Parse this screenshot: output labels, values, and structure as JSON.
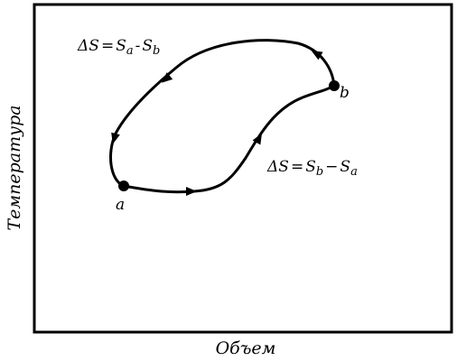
{
  "axes": {
    "y_label": "Температура",
    "x_label": "Объем"
  },
  "points": {
    "a": "a",
    "b": "b"
  },
  "upper_label": [
    "ΔS",
    "=",
    "S",
    "a",
    "-",
    "S",
    "b"
  ],
  "lower_label": [
    "ΔS",
    "=",
    "S",
    "b",
    "−",
    "S",
    "a"
  ]
}
